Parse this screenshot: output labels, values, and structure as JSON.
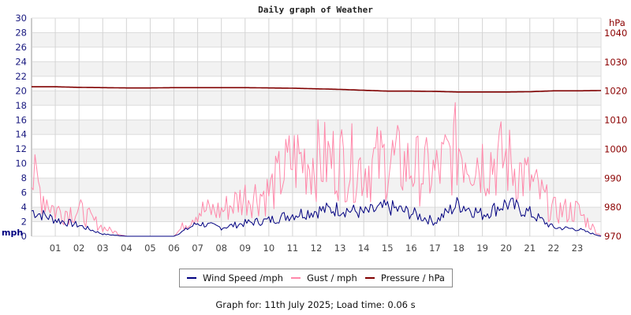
{
  "header": {
    "title": "Daily graph of Weather"
  },
  "legend": {
    "items": [
      {
        "label": "Wind Speed /mph",
        "color": "#000080"
      },
      {
        "label": "Gust / mph",
        "color": "#ff88aa"
      },
      {
        "label": "Pressure / hPa",
        "color": "#800000"
      }
    ]
  },
  "footer": {
    "text": "Graph for: 11th July 2025; Load time: 0.06 s"
  },
  "chart_data": {
    "type": "line",
    "title": "Daily graph of Weather",
    "xlabel": "",
    "ylabel": "mph",
    "y2label": "hPa",
    "x_ticks": [
      "01",
      "02",
      "03",
      "04",
      "05",
      "06",
      "07",
      "08",
      "09",
      "10",
      "11",
      "12",
      "13",
      "14",
      "15",
      "16",
      "17",
      "18",
      "19",
      "20",
      "21",
      "22",
      "23"
    ],
    "y_ticks": [
      0,
      2,
      4,
      6,
      8,
      10,
      12,
      14,
      16,
      18,
      20,
      22,
      24,
      26,
      28,
      30
    ],
    "y2_ticks": [
      970,
      980,
      990,
      1000,
      1010,
      1020,
      1030,
      1040
    ],
    "ylim": [
      0,
      30
    ],
    "y2lim": [
      970,
      1040
    ],
    "grid": true,
    "legend_position": "bottom",
    "x": [
      0,
      1,
      2,
      3,
      4,
      5,
      6,
      7,
      8,
      9,
      10,
      11,
      12,
      13,
      14,
      15,
      16,
      17,
      18,
      19,
      20,
      21,
      22,
      23,
      24
    ],
    "series": [
      {
        "name": "Wind Speed /mph",
        "axis": "left",
        "color": "#000080",
        "values": [
          3.5,
          2.3,
          1.5,
          0.3,
          0.0,
          0.0,
          0.0,
          1.8,
          1.2,
          1.8,
          2.2,
          3.0,
          3.5,
          3.8,
          3.2,
          4.0,
          3.2,
          2.0,
          4.5,
          3.0,
          4.5,
          3.2,
          1.2,
          1.0,
          0.0
        ]
      },
      {
        "name": "Gust / mph",
        "axis": "left",
        "color": "#ff88aa",
        "values": [
          8.0,
          3.5,
          3.5,
          1.2,
          0.0,
          0.0,
          0.0,
          3.5,
          3.5,
          5.5,
          6.0,
          10.5,
          10.5,
          10.5,
          9.5,
          10.5,
          9.5,
          8.5,
          12.5,
          10.5,
          10.5,
          7.5,
          3.5,
          3.5,
          0.0
        ]
      },
      {
        "name": "Pressure / hPa",
        "axis": "right",
        "color": "#800000",
        "values": [
          1021.5,
          1021.5,
          1021.3,
          1021.2,
          1021.1,
          1021.1,
          1021.2,
          1021.2,
          1021.2,
          1021.2,
          1021.1,
          1021.0,
          1020.8,
          1020.6,
          1020.3,
          1020.0,
          1020.0,
          1019.9,
          1019.7,
          1019.7,
          1019.7,
          1019.8,
          1020.1,
          1020.1,
          1020.2
        ]
      }
    ]
  }
}
